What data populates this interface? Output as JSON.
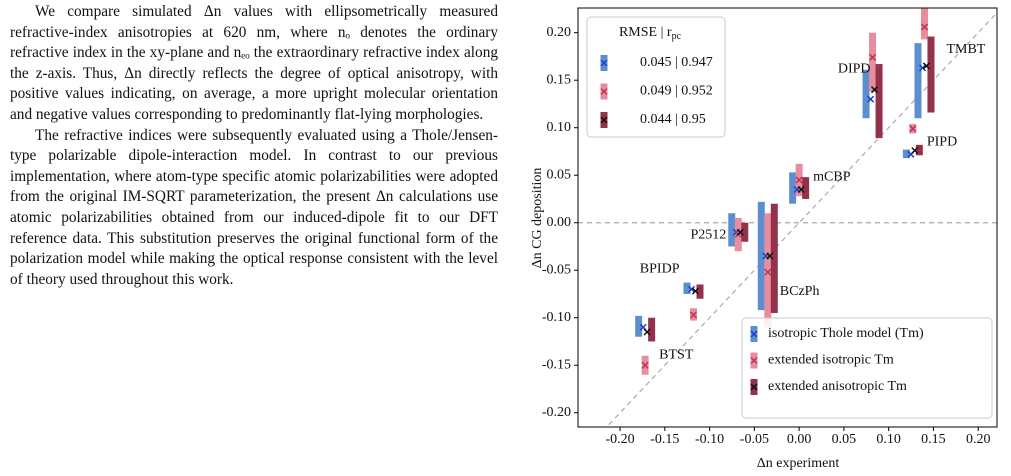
{
  "text": {
    "paragraphs": [
      "We compare simulated Δn values with ellipsometrically measured refractive-index anisotropies at 620 nm, where nₒ denotes the ordinary refractive index in the xy-plane and nₑₒ the extraordinary refractive index along the z-axis. Thus, Δn directly reflects the degree of optical anisotropy, with positive values indicating, on average, a more upright molecular orientation and negative values corresponding to predominantly flat-lying morphologies.",
      "The refractive indices were subsequently evaluated using a Thole/Jensen-type polarizable dipole-interaction model. In contrast to our previous implementation, where atom-type specific atomic polarizabilities were adopted from the original IM-SQRT parameterization, the present Δn calculations use atomic polarizabilities obtained from our induced-dipole fit to our DFT reference data. This substitution preserves the original functional form of the polarization model while making the optical response consistent with the level of theory used throughout this work."
    ]
  },
  "chart_data": {
    "type": "errorbar",
    "xlabel": "Δn experiment",
    "ylabel": "Δn CG deposition",
    "labels": [
      "TMBT",
      "DIPD",
      "PIPD",
      "mCBP",
      "P2512",
      "BCzPh",
      "BPIDP",
      "BTST"
    ],
    "x": [
      0.14,
      0.082,
      0.127,
      0.0,
      -0.068,
      -0.035,
      -0.118,
      -0.172
    ],
    "series": [
      {
        "name": "isotropic Thole model (Tm)",
        "color": "#5d8fd0",
        "marker_color": "#1f3fbf",
        "stats_label": "0.045 | 0.947",
        "values": [
          0.163,
          0.13,
          0.072,
          0.035,
          -0.01,
          -0.035,
          -0.07,
          -0.11
        ],
        "low": [
          0.11,
          0.11,
          0.068,
          0.02,
          -0.025,
          -0.092,
          -0.075,
          -0.12
        ],
        "high": [
          0.189,
          0.161,
          0.077,
          0.053,
          0.01,
          0.022,
          -0.063,
          -0.098
        ]
      },
      {
        "name": "extended isotropic Tm",
        "color": "#e88da0",
        "marker_color": "#c0304a",
        "stats_label": "0.049 | 0.952",
        "values": [
          0.206,
          0.174,
          0.099,
          0.045,
          -0.012,
          -0.052,
          -0.097,
          -0.15
        ],
        "low": [
          0.193,
          0.138,
          0.094,
          0.028,
          -0.03,
          -0.11,
          -0.103,
          -0.16
        ],
        "high": [
          0.23,
          0.2,
          0.104,
          0.062,
          0.005,
          0.01,
          -0.09,
          -0.14
        ]
      },
      {
        "name": "extended anisotropic Tm",
        "color": "#93334a",
        "marker_color": "#111111",
        "stats_label": "0.044 | 0.95",
        "values": [
          0.165,
          0.14,
          0.076,
          0.035,
          -0.01,
          -0.035,
          -0.072,
          -0.115
        ],
        "low": [
          0.116,
          0.089,
          0.071,
          0.025,
          -0.02,
          -0.095,
          -0.08,
          -0.125
        ],
        "high": [
          0.196,
          0.167,
          0.082,
          0.048,
          0.0,
          0.02,
          -0.065,
          -0.1
        ]
      }
    ],
    "stats_title": "RMSE | r",
    "stats_title_sub": "pc",
    "xlim": [
      -0.247,
      0.221
    ],
    "ylim": [
      -0.215,
      0.226
    ],
    "xticks": [
      {
        "value": -0.2,
        "label": "-0.20"
      },
      {
        "value": -0.15,
        "label": "-0.15"
      },
      {
        "value": -0.1,
        "label": "-0.10"
      },
      {
        "value": -0.05,
        "label": "-0.05"
      },
      {
        "value": 0,
        "label": "0.00"
      },
      {
        "value": 0.05,
        "label": "0.05"
      },
      {
        "value": 0.1,
        "label": "0.10"
      },
      {
        "value": 0.15,
        "label": "0.15"
      },
      {
        "value": 0.2,
        "label": "0.20"
      }
    ],
    "yticks": [
      {
        "value": -0.2,
        "label": "-0.20"
      },
      {
        "value": -0.15,
        "label": "-0.15"
      },
      {
        "value": -0.1,
        "label": "-0.10"
      },
      {
        "value": -0.05,
        "label": "-0.05"
      },
      {
        "value": 0,
        "label": "0.00"
      },
      {
        "value": 0.05,
        "label": "0.05"
      },
      {
        "value": 0.1,
        "label": "0.10"
      },
      {
        "value": 0.15,
        "label": "0.15"
      },
      {
        "value": 0.2,
        "label": "0.20"
      }
    ],
    "legend": "lower right"
  }
}
